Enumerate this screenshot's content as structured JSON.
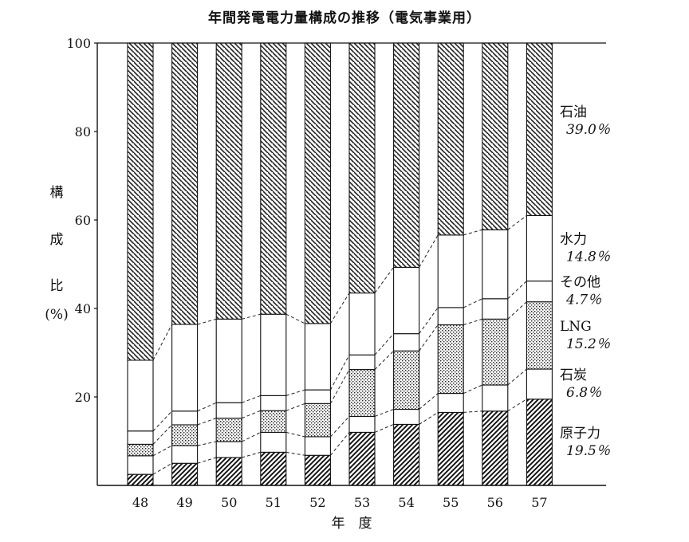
{
  "title": "年間発電電力量構成の推移（電気事業用）",
  "chart_data": {
    "type": "bar",
    "stacked": true,
    "title": "年間発電電力量構成の推移（電気事業用）",
    "xlabel": "年　度",
    "ylabel": [
      "構",
      "成",
      "比",
      "(%)"
    ],
    "ylim": [
      0,
      100
    ],
    "yticks": [
      "20",
      "40",
      "60",
      "80",
      "100"
    ],
    "grid": false,
    "categories": [
      "48",
      "49",
      "50",
      "51",
      "52",
      "53",
      "54",
      "55",
      "56",
      "57"
    ],
    "series": [
      {
        "name": "原子力",
        "label": "19.5％",
        "pattern": "heavy-hatch",
        "values": [
          2.5,
          5.0,
          6.3,
          7.5,
          6.8,
          12.0,
          13.8,
          16.5,
          16.8,
          19.5
        ]
      },
      {
        "name": "石炭",
        "label": "6.8％",
        "pattern": "white",
        "values": [
          4.2,
          4.0,
          3.6,
          4.5,
          4.2,
          3.6,
          3.4,
          4.3,
          5.9,
          6.8
        ]
      },
      {
        "name": "LNG",
        "label": "15.2％",
        "pattern": "dots",
        "values": [
          2.6,
          4.7,
          5.3,
          4.9,
          7.5,
          10.6,
          13.2,
          15.5,
          14.9,
          15.2
        ]
      },
      {
        "name": "その他",
        "label": "4.7％",
        "pattern": "white",
        "values": [
          3.0,
          3.1,
          3.5,
          3.4,
          3.1,
          3.3,
          3.9,
          3.9,
          4.6,
          4.7
        ]
      },
      {
        "name": "水力",
        "label": "14.8％",
        "pattern": "white",
        "values": [
          16.0,
          19.6,
          18.9,
          18.4,
          15.0,
          14.0,
          15.0,
          16.4,
          15.6,
          14.8
        ]
      },
      {
        "name": "石油",
        "label": "39.0％",
        "pattern": "hatch",
        "values": [
          71.7,
          63.6,
          62.4,
          61.3,
          63.4,
          56.5,
          50.7,
          43.4,
          42.2,
          39.0
        ]
      }
    ]
  }
}
